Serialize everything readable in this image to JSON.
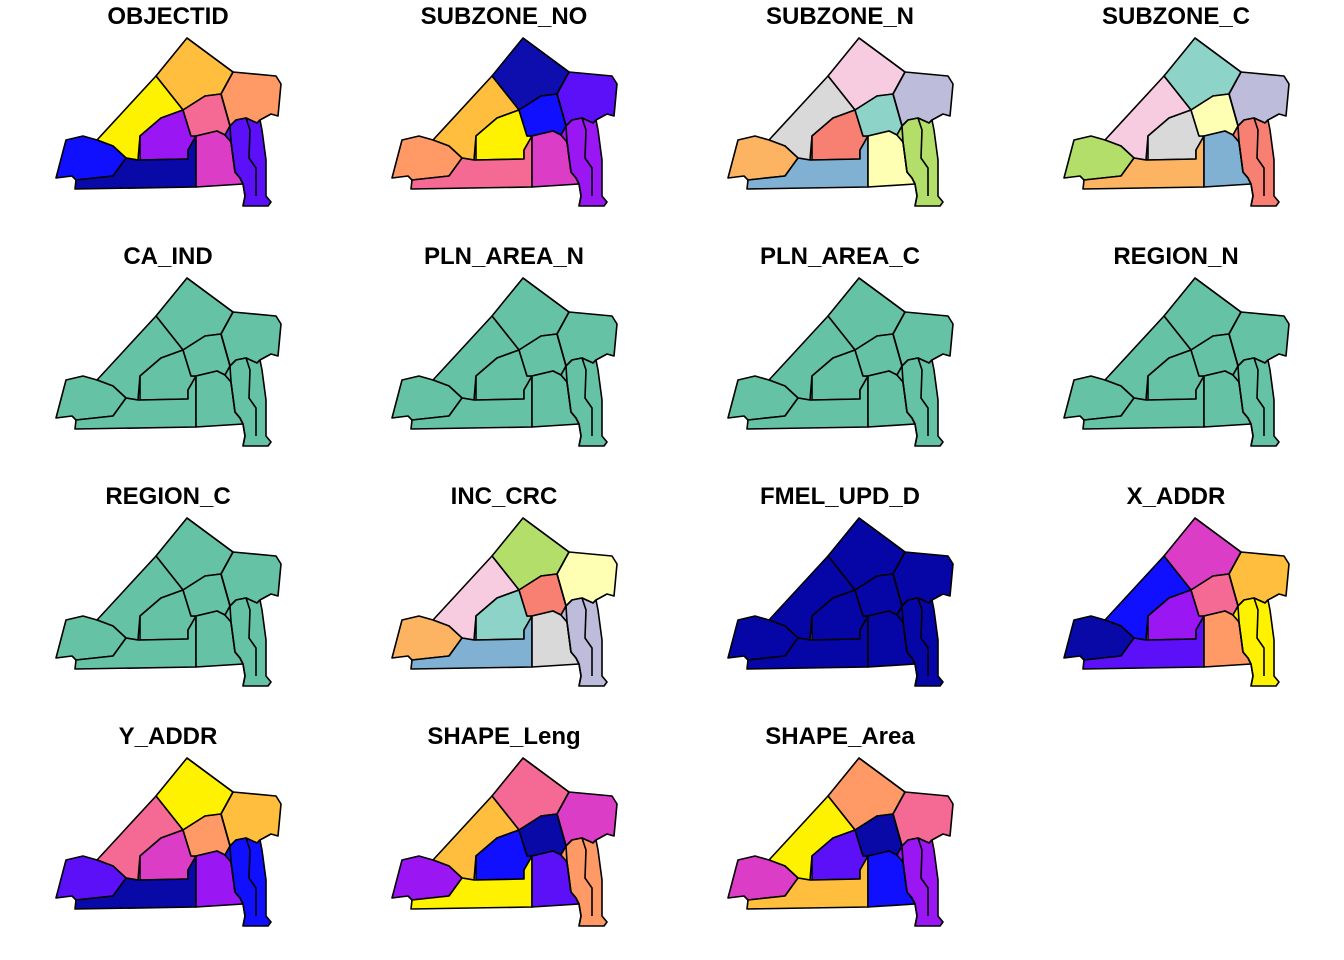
{
  "panels": [
    {
      "title": "OBJECTID",
      "fills": [
        "#FFBE3D",
        "#FFF200",
        "#FF9A66",
        "#9A16F2",
        "#F46A94",
        "#1010FF",
        "#0909A8",
        "#DC3DC6",
        "#5B10F8",
        "#6010F0"
      ]
    },
    {
      "title": "SUBZONE_NO",
      "fills": [
        "#0E0EAE",
        "#FFBE3D",
        "#5B10F8",
        "#FFF200",
        "#1010FF",
        "#FF9A66",
        "#F46A94",
        "#DC3DC6",
        "#9A16F2",
        "#9A16F2"
      ]
    },
    {
      "title": "SUBZONE_N",
      "fills": [
        "#F8CCE0",
        "#D9D9D9",
        "#BDBCDA",
        "#F88072",
        "#8ED3C8",
        "#FDB462",
        "#80B1D3",
        "#FFFFB4",
        "#B3DE69",
        "#B3DE69"
      ]
    },
    {
      "title": "SUBZONE_C",
      "fills": [
        "#8ED3C8",
        "#F8CCE0",
        "#BDBCDA",
        "#D9D9D9",
        "#FFFFB4",
        "#B3DE69",
        "#FDB462",
        "#80B1D3",
        "#F88072",
        "#F88072"
      ]
    },
    {
      "title": "CA_IND",
      "fills": [
        "#66C2A5",
        "#66C2A5",
        "#66C2A5",
        "#66C2A5",
        "#66C2A5",
        "#66C2A5",
        "#66C2A5",
        "#66C2A5",
        "#66C2A5",
        "#66C2A5"
      ]
    },
    {
      "title": "PLN_AREA_N",
      "fills": [
        "#66C2A5",
        "#66C2A5",
        "#66C2A5",
        "#66C2A5",
        "#66C2A5",
        "#66C2A5",
        "#66C2A5",
        "#66C2A5",
        "#66C2A5",
        "#66C2A5"
      ]
    },
    {
      "title": "PLN_AREA_C",
      "fills": [
        "#66C2A5",
        "#66C2A5",
        "#66C2A5",
        "#66C2A5",
        "#66C2A5",
        "#66C2A5",
        "#66C2A5",
        "#66C2A5",
        "#66C2A5",
        "#66C2A5"
      ]
    },
    {
      "title": "REGION_N",
      "fills": [
        "#66C2A5",
        "#66C2A5",
        "#66C2A5",
        "#66C2A5",
        "#66C2A5",
        "#66C2A5",
        "#66C2A5",
        "#66C2A5",
        "#66C2A5",
        "#66C2A5"
      ]
    },
    {
      "title": "REGION_C",
      "fills": [
        "#66C2A5",
        "#66C2A5",
        "#66C2A5",
        "#66C2A5",
        "#66C2A5",
        "#66C2A5",
        "#66C2A5",
        "#66C2A5",
        "#66C2A5",
        "#66C2A5"
      ]
    },
    {
      "title": "INC_CRC",
      "fills": [
        "#B3DE69",
        "#F8CCE0",
        "#FFFFB4",
        "#8ED3C8",
        "#F88072",
        "#FDB462",
        "#80B1D3",
        "#D9D9D9",
        "#BDBCDA",
        "#BDBCDA"
      ]
    },
    {
      "title": "FMEL_UPD_D",
      "fills": [
        "#0606A6",
        "#0606A6",
        "#0606A6",
        "#0606A6",
        "#0606A6",
        "#0606A6",
        "#0606A6",
        "#0606A6",
        "#0606A6",
        "#0606A6"
      ]
    },
    {
      "title": "X_ADDR",
      "fills": [
        "#DC3DC6",
        "#1010FF",
        "#FFBE3D",
        "#9A16F2",
        "#F46A94",
        "#0909A8",
        "#5B10F8",
        "#FF9A66",
        "#FFF200",
        "#FFF200"
      ]
    },
    {
      "title": "Y_ADDR",
      "fills": [
        "#FFF200",
        "#F46A94",
        "#FFBE3D",
        "#DC3DC6",
        "#FF9A66",
        "#5B10F8",
        "#0909A8",
        "#9A16F2",
        "#1010FF",
        "#1010FF"
      ]
    },
    {
      "title": "SHAPE_Leng",
      "fills": [
        "#F46A94",
        "#FFBE3D",
        "#DC3DC6",
        "#1010FF",
        "#0909A8",
        "#9A16F2",
        "#FFF200",
        "#5B10F8",
        "#FF9A66",
        "#FF9A66"
      ]
    },
    {
      "title": "SHAPE_Area",
      "fills": [
        "#FF9A66",
        "#FFF200",
        "#F46A94",
        "#5B10F8",
        "#0909A8",
        "#DC3DC6",
        "#FFBE3D",
        "#1010FF",
        "#9A16F2",
        "#9A16F2"
      ]
    }
  ]
}
